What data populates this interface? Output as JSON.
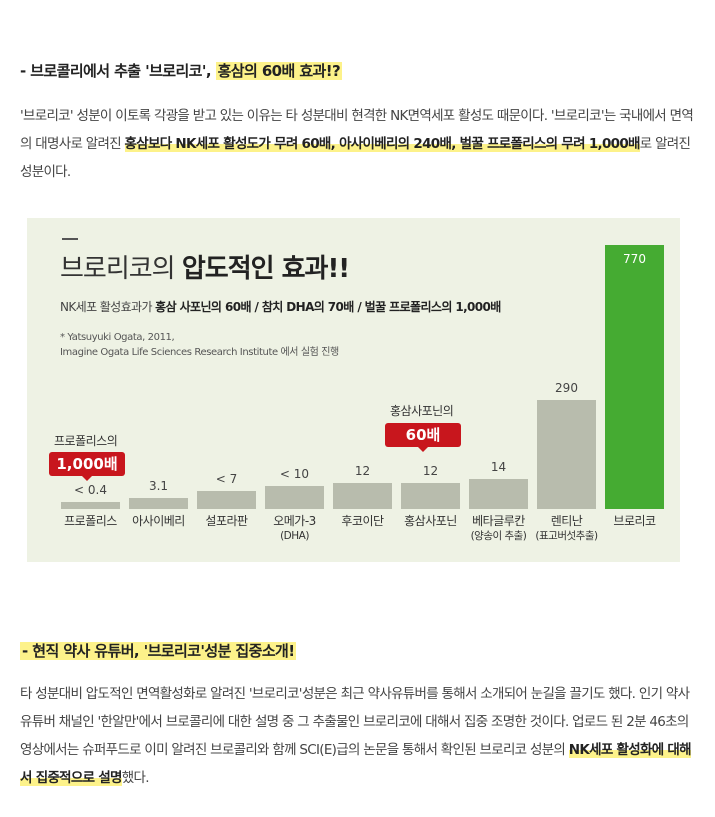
{
  "section1": {
    "heading_prefix": "- 브로콜리에서 추출 '브로리코', ",
    "heading_highlight": "홍삼의 60배 효과!?",
    "para": {
      "t1": "'브로리코' 성분이 이토록 각광을 받고 있는 이유는 타 성분대비 현격한 NK면역세포 활성도 때문이다. '브로리코'는 국내에서 면역의 대명사로 알려진 ",
      "t2": "홍삼보다 NK세포 활성도가 무려 60배, 아사이베리의 240배, 벌꿀 프로폴리스의 무려 1,000배",
      "t3": "로 알려진 성분이다."
    }
  },
  "chart": {
    "title_light": "브로리코의 ",
    "title_bold": "압도적인 효과!!",
    "sub_light": "NK세포 활성효과가 ",
    "sub_bold": "홍삼 사포닌의 60배 / 참치 DHA의 70배 / 벌꿀 프로폴리스의 1,000배",
    "note1": "* Yatsuyuki Ogata, 2011,",
    "note2": "Imagine Ogata Life Sciences Research Institute 에서 실험 진행",
    "callout_propolis_label": "프로폴리스의",
    "callout_propolis_badge": "1,000배",
    "callout_ginseng_label": "홍삼사포닌의",
    "callout_ginseng_badge": "60배"
  },
  "chart_data": {
    "type": "bar",
    "categories": [
      "프로폴리스",
      "아사이베리",
      "설포라판",
      "오메가-3 (DHA)",
      "후코이단",
      "홍삼사포닌",
      "베타글루칸 (양송이 추출)",
      "렌티난 (표고버섯추출)",
      "브로리코"
    ],
    "value_labels": [
      "< 0.4",
      "3.1",
      "< 7",
      "< 10",
      "12",
      "12",
      "14",
      "290",
      "770"
    ],
    "values": [
      0.4,
      3.1,
      7,
      10,
      12,
      12,
      14,
      290,
      770
    ],
    "highlight_color": "#45ab32",
    "bar_color": "#b8bcad"
  },
  "section2": {
    "heading": "- 현직 약사 유튜버, '브로리코'성분 집중소개!",
    "para": {
      "t1": "타 성분대비 압도적인 면역활성화로 알려진 '브로리코'성분은 최근 약사유튜버를 통해서 소개되어 눈길을 끌기도 했다. 인기 약사 유튜버 채널인 '한알만'에서 브로콜리에 대한 설명 중 그 추출물인 브로리코에 대해서 집중 조명한 것이다. 업로드 된 2분 46초의 영상에서는 슈퍼푸드로 이미 알려진 브로콜리와 함께 SCI(E)급의 논문을 통해서 확인된 브로리코 성분의 ",
      "t2": "NK세포 활성화에 대해서 집중적으로 설명",
      "t3": "했다."
    }
  }
}
